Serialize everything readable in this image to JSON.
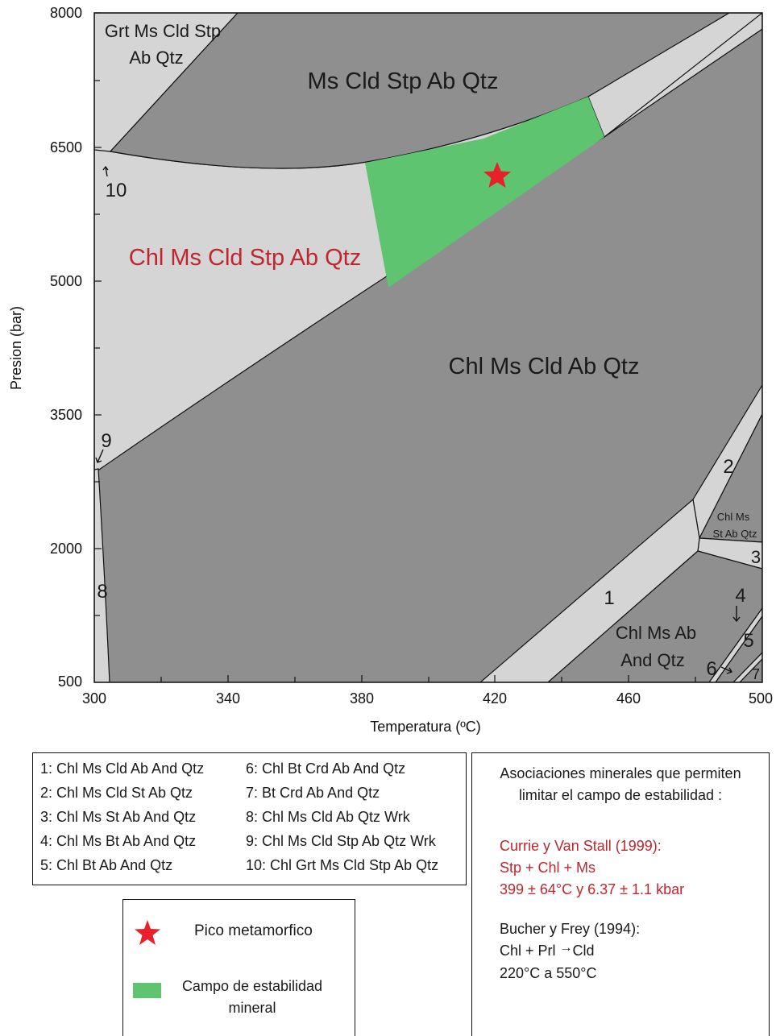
{
  "diagram": {
    "y_ticks": [
      "8000",
      "6500",
      "5000",
      "3500",
      "2000",
      "500"
    ],
    "x_ticks": [
      "300",
      "340",
      "380",
      "420",
      "460",
      "500"
    ],
    "ylabel": "Presion (bar)",
    "xlabel": "Temperatura (ºC)",
    "field_labels": {
      "grt_ms_cld_stp_line1": "Grt Ms Cld Stp",
      "grt_ms_cld_stp_line2": "Ab Qtz",
      "ms_cld_stp": "Ms Cld Stp Ab Qtz",
      "chl_ms_cld_stp": "Chl Ms Cld Stp Ab Qtz",
      "chl_ms_cld": "Chl Ms Cld Ab Qtz",
      "chl_ms_st_line1": "Chl Ms",
      "chl_ms_st_line2": "St Ab Qtz",
      "chl_ms_ab_line1": "Chl Ms Ab",
      "chl_ms_ab_line2": "And Qtz"
    },
    "numbers": [
      "1",
      "2",
      "3",
      "4",
      "5",
      "6",
      "7",
      "8",
      "9",
      "10"
    ],
    "colors": {
      "dark_field": "#8f8f8f",
      "light_field": "#d5d5d5",
      "stability_field": "#5ec46f",
      "star": "#e8202a",
      "red_text": "#c0262d"
    }
  },
  "assemblage_legend": {
    "col1": [
      "1: Chl Ms Cld Ab And Qtz",
      "2: Chl Ms Cld St Ab Qtz",
      "3: Chl Ms St Ab And Qtz",
      "4: Chl Ms Bt Ab And Qtz",
      "5: Chl Bt Ab And Qtz"
    ],
    "col2": [
      "6: Chl Bt Crd Ab And Qtz",
      "7: Bt Crd Ab And Qtz",
      "8: Chl Ms Cld Ab Qtz Wrk",
      "9: Chl Ms Cld Stp Ab Qtz Wrk",
      "10: Chl Grt Ms Cld Stp Ab Qtz"
    ]
  },
  "symbol_legend": {
    "star_label": "Pico metamorfico",
    "field_label_line1": "Campo de estabilidad",
    "field_label_line2": "mineral"
  },
  "references": {
    "heading_line1": "Asociaciones minerales que permiten",
    "heading_line2": "limitar el campo de estabilidad :",
    "ref1_line1": "Currie y Van Stall (1999):",
    "ref1_line2": "Stp + Chl + Ms",
    "ref1_line3": "399 ± 64°C y 6.37 ± 1.1 kbar",
    "ref2_line1": "Bucher y Frey (1994):",
    "ref2_line2_a": "Chl + Prl",
    "ref2_line2_arrow": "→",
    "ref2_line2_b": "Cld",
    "ref2_line3": "220°C a 550°C"
  }
}
